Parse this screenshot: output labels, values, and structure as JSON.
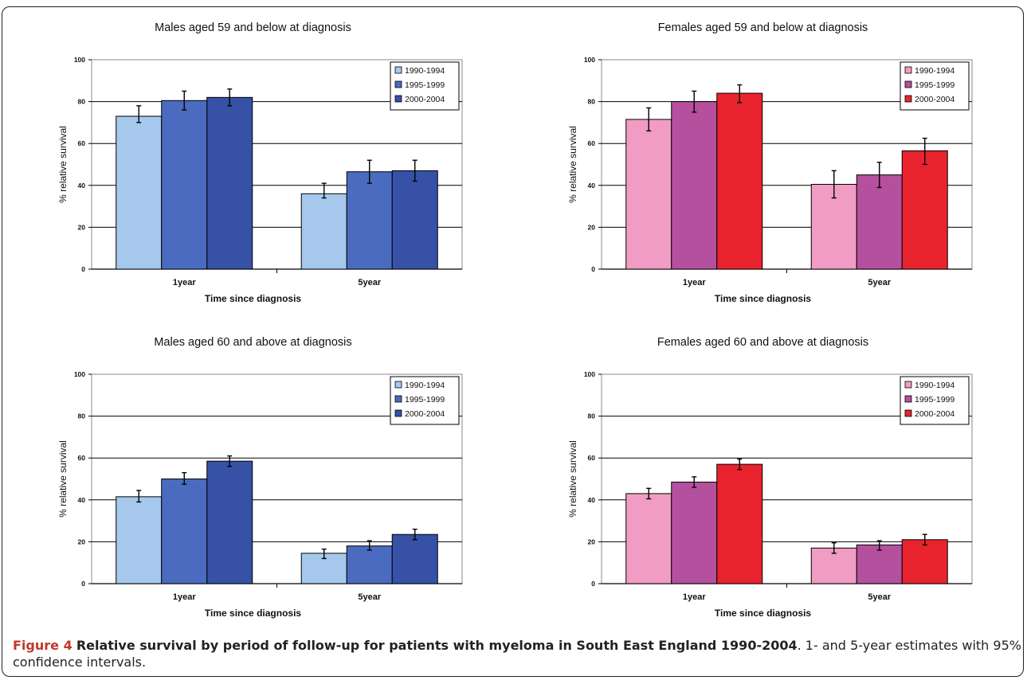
{
  "figure": {
    "caption_label": "Figure 4",
    "caption_title": "Relative survival by period of follow-up for patients with myeloma in South East England 1990-2004",
    "caption_text": ". 1- and 5-year estimates with 95% confidence intervals."
  },
  "chart_data": [
    {
      "type": "bar",
      "title": "Males aged 59 and below at diagnosis",
      "xlabel": "Time since diagnosis",
      "ylabel": "% relative survival",
      "ylim": [
        0,
        100
      ],
      "yticks": [
        "0",
        "20",
        "40",
        "60",
        "80",
        "100"
      ],
      "categories": [
        "1year",
        "5year"
      ],
      "legend_position": "top-right",
      "grid": true,
      "series": [
        {
          "name": "1990-1994",
          "color": "#a6c8ec",
          "values": [
            73,
            36
          ],
          "ci_low": [
            70,
            34
          ],
          "ci_high": [
            78,
            41
          ]
        },
        {
          "name": "1995-1999",
          "color": "#4a6bbf",
          "values": [
            80.5,
            46.5
          ],
          "ci_low": [
            76,
            41
          ],
          "ci_high": [
            85,
            52
          ]
        },
        {
          "name": "2000-2004",
          "color": "#3651a6",
          "values": [
            82,
            47
          ],
          "ci_low": [
            78,
            42
          ],
          "ci_high": [
            86,
            52
          ]
        }
      ]
    },
    {
      "type": "bar",
      "title": "Females aged 59 and below at diagnosis",
      "xlabel": "Time since diagnosis",
      "ylabel": "% relative survival",
      "ylim": [
        0,
        100
      ],
      "yticks": [
        "0",
        "20",
        "40",
        "60",
        "80",
        "100"
      ],
      "categories": [
        "1year",
        "5year"
      ],
      "legend_position": "top-right",
      "grid": true,
      "series": [
        {
          "name": "1990-1994",
          "color": "#f19cc4",
          "values": [
            71.5,
            40.5
          ],
          "ci_low": [
            66,
            34
          ],
          "ci_high": [
            77,
            47
          ]
        },
        {
          "name": "1995-1999",
          "color": "#b5509e",
          "values": [
            80,
            45
          ],
          "ci_low": [
            75,
            39
          ],
          "ci_high": [
            85,
            51
          ]
        },
        {
          "name": "2000-2004",
          "color": "#e8232d",
          "values": [
            84,
            56.5
          ],
          "ci_low": [
            79.5,
            50
          ],
          "ci_high": [
            88,
            62.5
          ]
        }
      ]
    },
    {
      "type": "bar",
      "title": "Males aged 60 and above at diagnosis",
      "xlabel": "Time since diagnosis",
      "ylabel": "% relative survival",
      "ylim": [
        0,
        100
      ],
      "yticks": [
        "0",
        "20",
        "40",
        "60",
        "80",
        "100"
      ],
      "categories": [
        "1year",
        "5year"
      ],
      "legend_position": "top-right",
      "grid": true,
      "series": [
        {
          "name": "1990-1994",
          "color": "#a6c8ec",
          "values": [
            41.5,
            14.5
          ],
          "ci_low": [
            39,
            12
          ],
          "ci_high": [
            44.5,
            16.5
          ]
        },
        {
          "name": "1995-1999",
          "color": "#4a6bbf",
          "values": [
            50,
            18
          ],
          "ci_low": [
            47.5,
            16
          ],
          "ci_high": [
            53,
            20.5
          ]
        },
        {
          "name": "2000-2004",
          "color": "#3651a6",
          "values": [
            58.5,
            23.5
          ],
          "ci_low": [
            56,
            21
          ],
          "ci_high": [
            61,
            26
          ]
        }
      ]
    },
    {
      "type": "bar",
      "title": "Females aged 60 and above at diagnosis",
      "xlabel": "Time since diagnosis",
      "ylabel": "% relative survival",
      "ylim": [
        0,
        100
      ],
      "yticks": [
        "0",
        "20",
        "40",
        "60",
        "80",
        "100"
      ],
      "categories": [
        "1year",
        "5year"
      ],
      "legend_position": "top-right",
      "grid": true,
      "series": [
        {
          "name": "1990-1994",
          "color": "#f19cc4",
          "values": [
            43,
            17
          ],
          "ci_low": [
            40.5,
            14.5
          ],
          "ci_high": [
            45.5,
            19.5
          ]
        },
        {
          "name": "1995-1999",
          "color": "#b5509e",
          "values": [
            48.5,
            18.5
          ],
          "ci_low": [
            46,
            16
          ],
          "ci_high": [
            51,
            20.5
          ]
        },
        {
          "name": "2000-2004",
          "color": "#e8232d",
          "values": [
            57,
            21
          ],
          "ci_low": [
            54.5,
            18.5
          ],
          "ci_high": [
            59.5,
            23.5
          ]
        }
      ]
    }
  ]
}
